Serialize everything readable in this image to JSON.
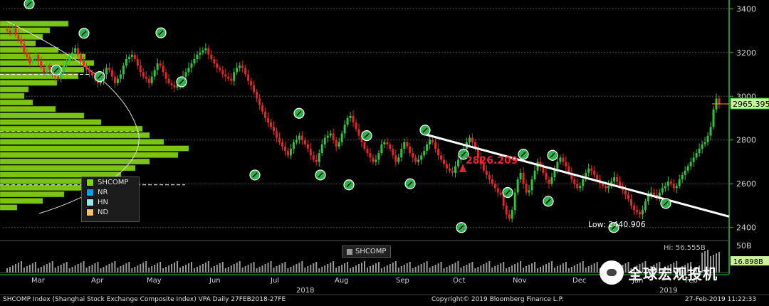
{
  "chart_data": {
    "type": "candlestick",
    "ticker": "SHCOMP",
    "y_ticks": [
      2400,
      2600,
      2800,
      3000,
      3200,
      3400
    ],
    "ylim": [
      2360,
      3440
    ],
    "x_month_labels": [
      "Mar",
      "Apr",
      "May",
      "Jun",
      "Jul",
      "Aug",
      "Sep",
      "Oct",
      "Nov",
      "Dec",
      "Jan",
      "Feb"
    ],
    "x_year_labels": [
      "2018",
      "2019"
    ],
    "last_price_label": "2965.395",
    "annotation_high": "2826.209",
    "annotation_low": "Low: 2440.906",
    "volume_axis_label": "50B",
    "volume_hi_label": "Hi: 56.555B",
    "volume_last_label": "16.898B",
    "legend": [
      {
        "label": "SHCOMP",
        "color": "#7ed321"
      },
      {
        "label": "NR",
        "color": "#00a3e0"
      },
      {
        "label": "HN",
        "color": "#9be7f0"
      },
      {
        "label": "ND",
        "color": "#f5c26b"
      }
    ],
    "trendline": {
      "start_price": 2826,
      "end_price": 2450
    },
    "close_series": [
      3300,
      3290,
      3310,
      3280,
      3260,
      3240,
      3200,
      3180,
      3150,
      3170,
      3190,
      3160,
      3130,
      3110,
      3140,
      3120,
      3100,
      3090,
      3080,
      3110,
      3140,
      3160,
      3180,
      3200,
      3220,
      3190,
      3160,
      3140,
      3120,
      3110,
      3095,
      3080,
      3060,
      3070,
      3100,
      3130,
      3120,
      3090,
      3060,
      3080,
      3100,
      3140,
      3170,
      3180,
      3190,
      3170,
      3140,
      3110,
      3090,
      3080,
      3060,
      3090,
      3120,
      3150,
      3140,
      3110,
      3080,
      3060,
      3050,
      3040,
      3050,
      3060,
      3090,
      3110,
      3130,
      3150,
      3170,
      3190,
      3200,
      3210,
      3220,
      3190,
      3170,
      3150,
      3130,
      3120,
      3100,
      3090,
      3080,
      3070,
      3110,
      3130,
      3140,
      3130,
      3100,
      3070,
      3050,
      3020,
      2990,
      2960,
      2930,
      2900,
      2880,
      2860,
      2840,
      2810,
      2790,
      2770,
      2750,
      2730,
      2760,
      2790,
      2800,
      2820,
      2800,
      2780,
      2760,
      2730,
      2710,
      2700,
      2740,
      2780,
      2810,
      2820,
      2830,
      2800,
      2770,
      2790,
      2830,
      2870,
      2900,
      2910,
      2880,
      2850,
      2820,
      2790,
      2760,
      2740,
      2720,
      2700,
      2710,
      2740,
      2780,
      2790,
      2780,
      2760,
      2730,
      2700,
      2720,
      2760,
      2790,
      2770,
      2740,
      2720,
      2700,
      2710,
      2730,
      2750,
      2780,
      2800,
      2790,
      2760,
      2730,
      2710,
      2690,
      2670,
      2660,
      2650,
      2680,
      2710,
      2730,
      2760,
      2790,
      2810,
      2790,
      2760,
      2720,
      2690,
      2660,
      2640,
      2620,
      2600,
      2580,
      2560,
      2550,
      2500,
      2460,
      2440,
      2480,
      2560,
      2620,
      2650,
      2600,
      2560,
      2570,
      2620,
      2660,
      2700,
      2680,
      2650,
      2620,
      2600,
      2630,
      2670,
      2700,
      2720,
      2700,
      2680,
      2650,
      2620,
      2600,
      2580,
      2590,
      2620,
      2650,
      2670,
      2660,
      2640,
      2620,
      2600,
      2590,
      2580,
      2590,
      2610,
      2630,
      2610,
      2590,
      2570,
      2550,
      2530,
      2500,
      2480,
      2470,
      2460,
      2480,
      2520,
      2550,
      2560,
      2550,
      2540,
      2560,
      2580,
      2590,
      2610,
      2600,
      2580,
      2590,
      2620,
      2640,
      2660,
      2680,
      2700,
      2720,
      2740,
      2760,
      2780,
      2790,
      2820,
      2860,
      2940,
      2990,
      2965
    ]
  },
  "footer": {
    "left": "SHCOMP Index (Shanghai Stock Exchange Composite Index) VPA  Daily 27FEB2018-27FE",
    "center": "Copyright© 2019 Bloomberg Finance L.P.",
    "right": "27-Feb-2019 11:22:33"
  },
  "watermark": "全球宏观投机",
  "shcomp_tag": "SHCOMP",
  "colors": {
    "up": "#35c040",
    "down": "#e0282a",
    "axis": "#2fbf2f",
    "profile": "#7cc412",
    "grid": "#4a4a4a",
    "trend": "#ffffff"
  }
}
